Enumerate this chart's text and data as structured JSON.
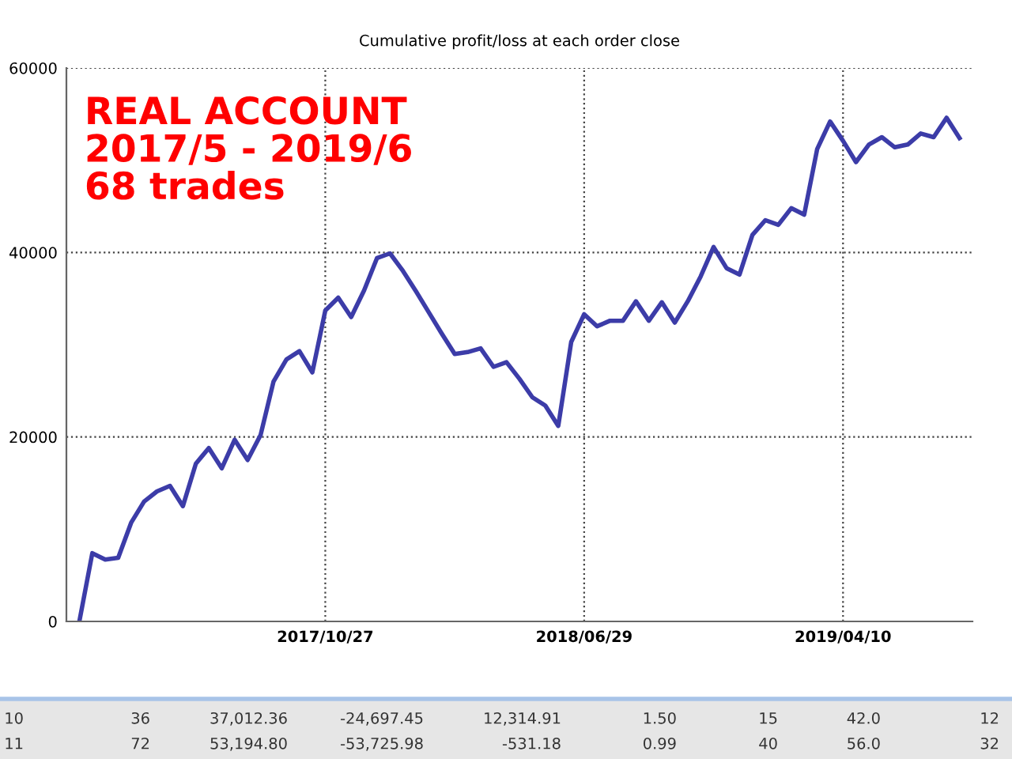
{
  "chart_data": {
    "type": "line",
    "title": "Cumulative profit/loss at each order close",
    "categories": [
      null,
      null,
      null,
      null,
      null,
      null,
      null,
      null,
      null,
      null,
      null,
      null,
      null,
      null,
      null,
      null,
      null,
      null,
      null,
      "2017/10/27",
      null,
      null,
      null,
      null,
      null,
      null,
      null,
      null,
      null,
      null,
      null,
      null,
      null,
      null,
      null,
      null,
      null,
      null,
      null,
      "2018/06/29",
      null,
      null,
      null,
      null,
      null,
      null,
      null,
      null,
      null,
      null,
      null,
      null,
      null,
      null,
      null,
      null,
      null,
      null,
      null,
      "2019/04/10",
      null,
      null,
      null,
      null,
      null,
      null,
      null,
      null,
      null
    ],
    "series": [
      {
        "color": "#3c3ca8",
        "values": [
          0,
          7400,
          6700,
          6900,
          10700,
          13000,
          14100,
          14700,
          12500,
          17100,
          18800,
          16600,
          19700,
          17500,
          20200,
          26000,
          28400,
          29300,
          27000,
          33700,
          35100,
          33000,
          35900,
          39400,
          39900,
          38000,
          35800,
          33500,
          31200,
          29000,
          29200,
          29600,
          27600,
          28100,
          26300,
          24300,
          23400,
          21200,
          30300,
          33300,
          32000,
          32600,
          32600,
          34700,
          32600,
          34600,
          32400,
          34700,
          37400,
          40600,
          38300,
          37600,
          41900,
          43500,
          43000,
          44800,
          44100,
          51200,
          54200,
          52100,
          49800,
          51700,
          52500,
          51400,
          51700,
          52900,
          52500,
          54600,
          52400
        ]
      }
    ],
    "ylim": [
      0,
      60000
    ],
    "yticks": [
      0,
      20000,
      40000,
      60000
    ],
    "grid": true,
    "marker": "none",
    "line_style": "solid",
    "legend": false,
    "annotations": [
      "REAL ACCOUNT\n2017/5 - 2019/6\n68 trades",
      "10",
      "36",
      "37,012.36",
      "-24,697.45",
      "12,314.91",
      "1.50",
      "15",
      "42.0",
      "12",
      "11",
      "72",
      "53,194.80",
      "-53,725.98",
      "-531.18",
      "0.99",
      "40",
      "56.0",
      "32"
    ]
  }
}
